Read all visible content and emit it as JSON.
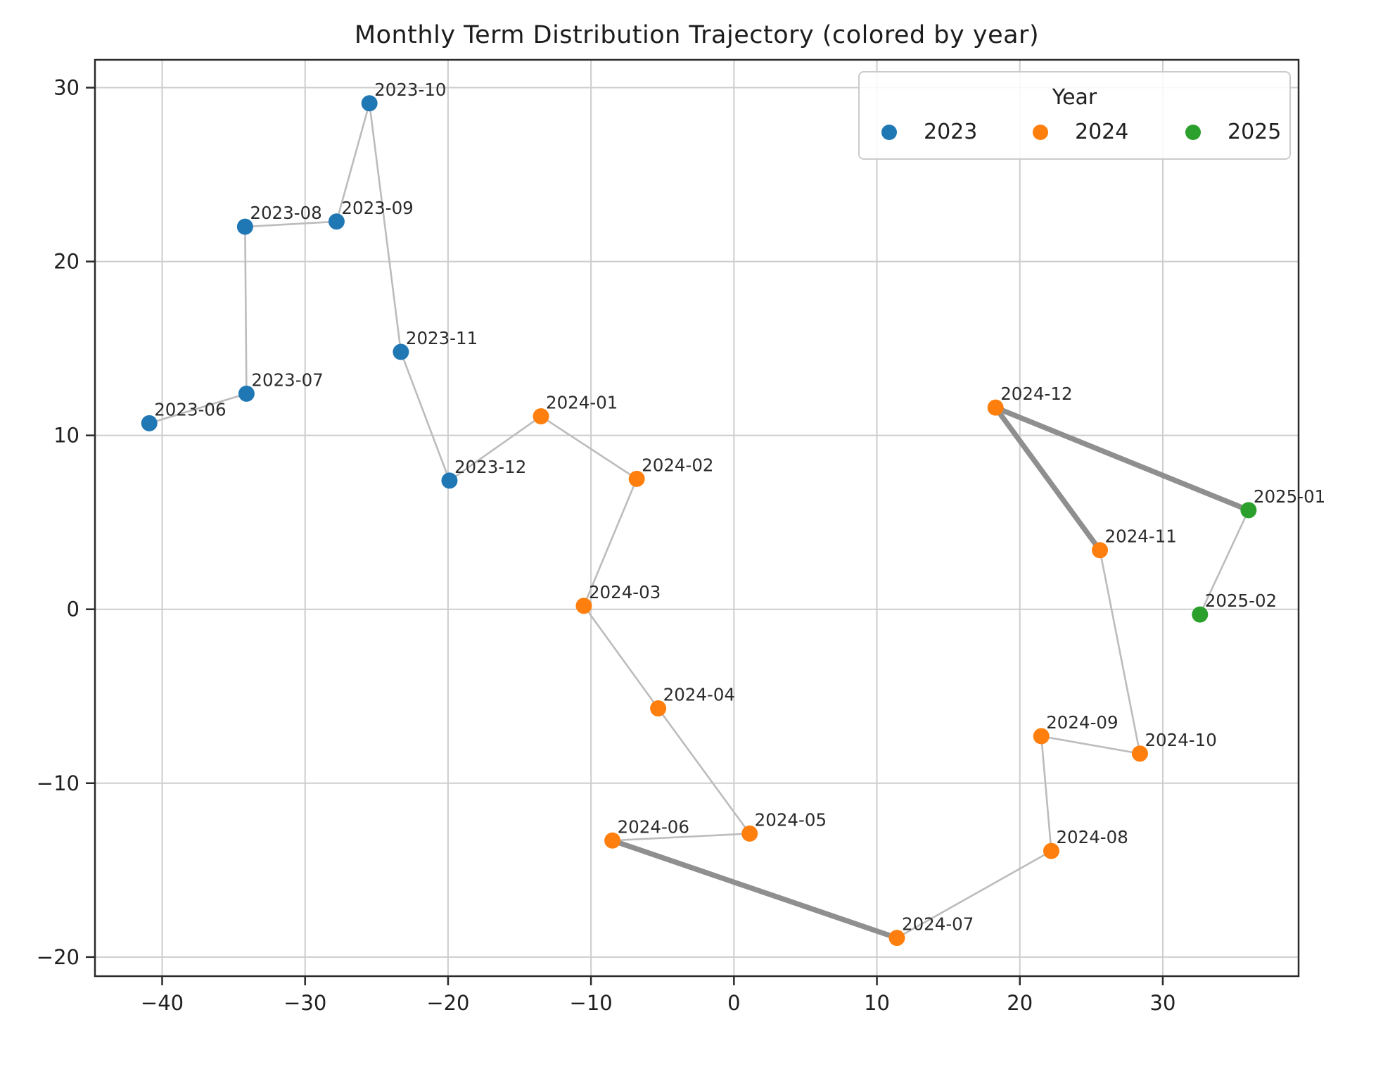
{
  "chart_data": {
    "type": "scatter",
    "title": "Monthly Term Distribution Trajectory (colored by year)",
    "xlabel": "",
    "ylabel": "",
    "grid": true,
    "xlim": [
      -44.7,
      39.5
    ],
    "ylim": [
      -21.1,
      31.6
    ],
    "xticks": [
      -40,
      -30,
      -20,
      -10,
      0,
      10,
      20,
      30
    ],
    "yticks": [
      -20,
      -10,
      0,
      10,
      20,
      30
    ],
    "legend": {
      "title": "Year",
      "position": "upper right",
      "entries": [
        {
          "label": "2023",
          "color": "#1f77b4"
        },
        {
          "label": "2024",
          "color": "#ff7f0e"
        },
        {
          "label": "2025",
          "color": "#2ca02c"
        }
      ]
    },
    "year_colors": {
      "2023": "#1f77b4",
      "2024": "#ff7f0e",
      "2025": "#2ca02c"
    },
    "points": [
      {
        "label": "2023-06",
        "year": "2023",
        "x": -40.9,
        "y": 10.7
      },
      {
        "label": "2023-07",
        "year": "2023",
        "x": -34.1,
        "y": 12.4
      },
      {
        "label": "2023-08",
        "year": "2023",
        "x": -34.2,
        "y": 22.0
      },
      {
        "label": "2023-09",
        "year": "2023",
        "x": -27.8,
        "y": 22.3
      },
      {
        "label": "2023-10",
        "year": "2023",
        "x": -25.5,
        "y": 29.1
      },
      {
        "label": "2023-11",
        "year": "2023",
        "x": -23.3,
        "y": 14.8
      },
      {
        "label": "2023-12",
        "year": "2023",
        "x": -19.9,
        "y": 7.4
      },
      {
        "label": "2024-01",
        "year": "2024",
        "x": -13.5,
        "y": 11.1
      },
      {
        "label": "2024-02",
        "year": "2024",
        "x": -6.8,
        "y": 7.5
      },
      {
        "label": "2024-03",
        "year": "2024",
        "x": -10.5,
        "y": 0.2
      },
      {
        "label": "2024-04",
        "year": "2024",
        "x": -5.3,
        "y": -5.7
      },
      {
        "label": "2024-05",
        "year": "2024",
        "x": 1.1,
        "y": -12.9
      },
      {
        "label": "2024-06",
        "year": "2024",
        "x": -8.5,
        "y": -13.3
      },
      {
        "label": "2024-07",
        "year": "2024",
        "x": 11.4,
        "y": -18.9
      },
      {
        "label": "2024-08",
        "year": "2024",
        "x": 22.2,
        "y": -13.9
      },
      {
        "label": "2024-09",
        "year": "2024",
        "x": 21.5,
        "y": -7.3
      },
      {
        "label": "2024-10",
        "year": "2024",
        "x": 28.4,
        "y": -8.3
      },
      {
        "label": "2024-11",
        "year": "2024",
        "x": 25.6,
        "y": 3.4
      },
      {
        "label": "2024-12",
        "year": "2024",
        "x": 18.3,
        "y": 11.6
      },
      {
        "label": "2025-01",
        "year": "2025",
        "x": 36.0,
        "y": 5.7
      },
      {
        "label": "2025-02",
        "year": "2025",
        "x": 32.6,
        "y": -0.3
      }
    ],
    "trajectory": "consecutive points are connected in chronological order",
    "thick_segments": [
      [
        "2024-06",
        "2024-07"
      ],
      [
        "2024-11",
        "2024-12"
      ],
      [
        "2024-12",
        "2025-01"
      ]
    ],
    "line_colors": {
      "thin": "#bcbcbc",
      "thick": "#8f8f8f"
    },
    "grid_color": "#cdcdcd",
    "spine_color": "#2a2a2a",
    "text_color": "#1f1f1f"
  }
}
